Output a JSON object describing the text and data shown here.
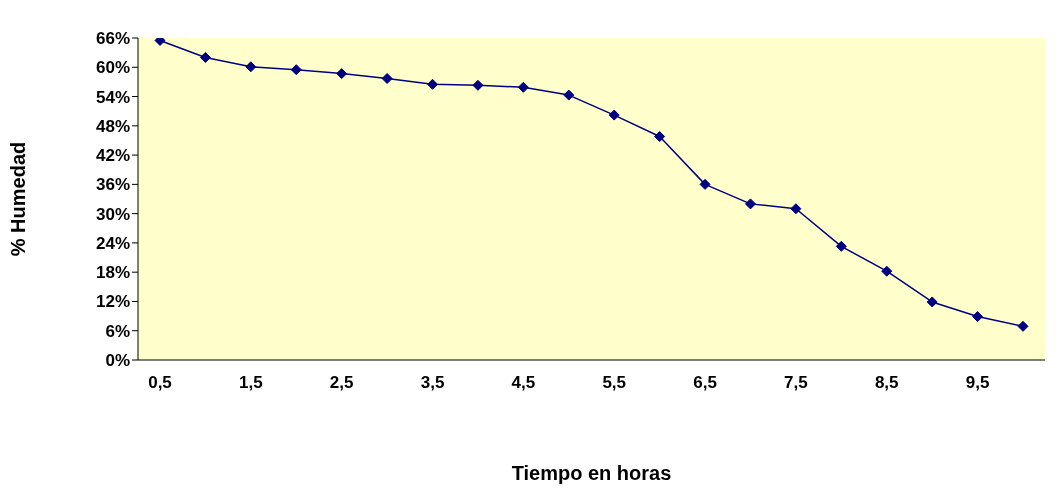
{
  "chart_data": {
    "type": "line",
    "xlabel": "Tiempo en horas",
    "ylabel": "% Humedad",
    "categories": [
      "0,5",
      null,
      "1,5",
      null,
      "2,5",
      null,
      "3,5",
      null,
      "4,5",
      null,
      "5,5",
      null,
      "6,5",
      null,
      "7,5",
      null,
      "8,5",
      null,
      "9,5",
      null
    ],
    "series": [
      {
        "color": "#000080",
        "values": [
          65.5,
          62.0,
          60.1,
          59.5,
          58.7,
          57.7,
          56.5,
          56.3,
          55.9,
          54.3,
          50.2,
          45.8,
          36.0,
          32.0,
          31.0,
          23.3,
          18.2,
          11.9,
          8.9,
          6.9
        ]
      }
    ],
    "ylim": [
      0,
      66
    ],
    "yticks": [
      {
        "value": 0,
        "label": "0%"
      },
      {
        "value": 6,
        "label": "6%"
      },
      {
        "value": 12,
        "label": "12%"
      },
      {
        "value": 18,
        "label": "18%"
      },
      {
        "value": 24,
        "label": "24%"
      },
      {
        "value": 30,
        "label": "30%"
      },
      {
        "value": 36,
        "label": "36%"
      },
      {
        "value": 42,
        "label": "42%"
      },
      {
        "value": 48,
        "label": "48%"
      },
      {
        "value": 54,
        "label": "54%"
      },
      {
        "value": 60,
        "label": "60%"
      },
      {
        "value": 66,
        "label": "66%"
      }
    ],
    "marker": "diamond",
    "line_style": "solid",
    "grid": false,
    "legend": false
  }
}
